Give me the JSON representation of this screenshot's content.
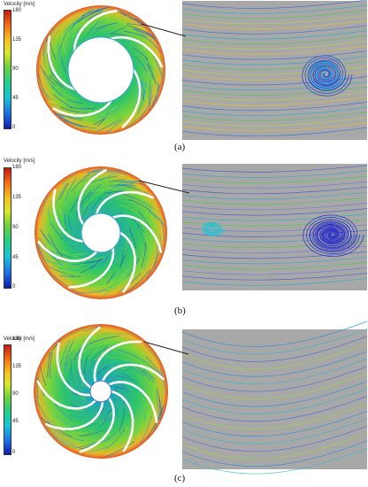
{
  "colorbar": {
    "title": "Velocity [m/s]",
    "ticks": [
      "180",
      "135",
      "90",
      "45",
      "0"
    ]
  },
  "panels": [
    {
      "caption": "(a)",
      "vanes": 5,
      "hub_ratio": 0.55
    },
    {
      "caption": "(b)",
      "vanes": 7,
      "hub_ratio": 0.3
    },
    {
      "caption": "(c)",
      "vanes": 9,
      "hub_ratio": 0.15
    }
  ],
  "colors": {
    "background_gray": "#a8a8a8",
    "vane_white": "#ffffff",
    "connector_line": "#222222"
  }
}
